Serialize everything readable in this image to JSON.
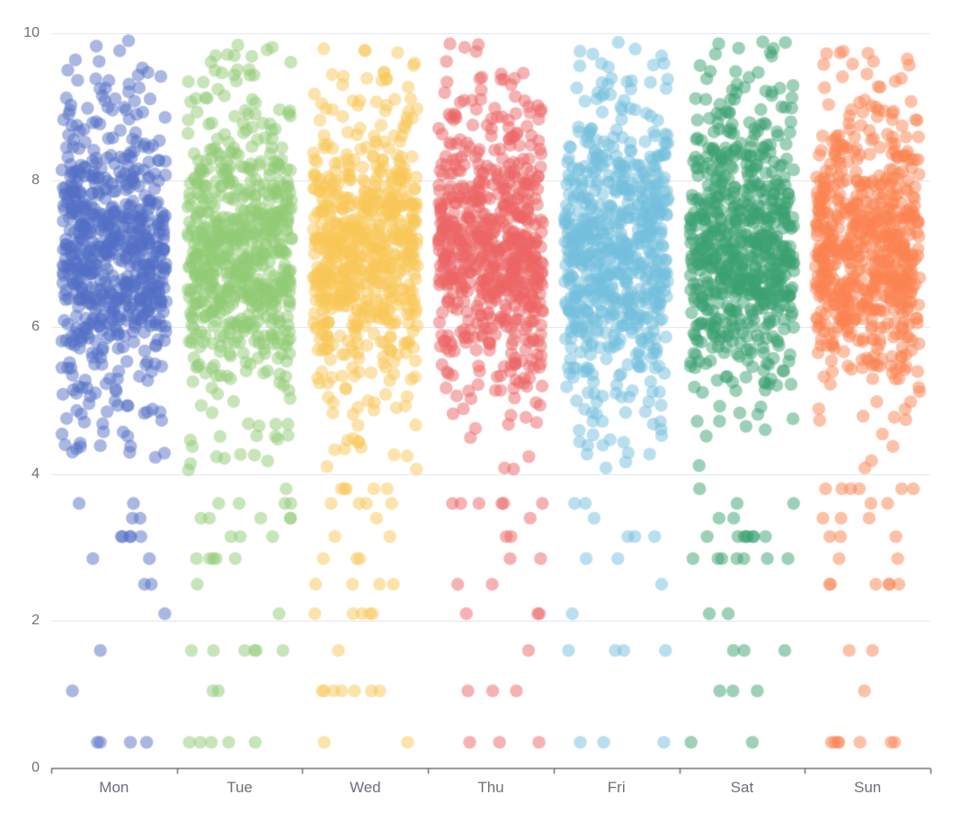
{
  "chart_data": {
    "type": "scatter",
    "variant": "jittered-strip-plot",
    "title": "",
    "xlabel": "",
    "ylabel": "",
    "categories": [
      "Mon",
      "Tue",
      "Wed",
      "Thu",
      "Fri",
      "Sat",
      "Sun"
    ],
    "series": [
      {
        "name": "Mon",
        "color": "#5470c6"
      },
      {
        "name": "Tue",
        "color": "#91cc75"
      },
      {
        "name": "Wed",
        "color": "#fac858"
      },
      {
        "name": "Thu",
        "color": "#ee6666"
      },
      {
        "name": "Fri",
        "color": "#73c0de"
      },
      {
        "name": "Sat",
        "color": "#3ba272"
      },
      {
        "name": "Sun",
        "color": "#fc8452"
      }
    ],
    "y_axis": {
      "min": 0,
      "max": 10,
      "ticks": [
        0,
        2,
        4,
        6,
        8,
        10
      ],
      "grid": true
    },
    "legend": "none",
    "point_style": {
      "radius": 7.2,
      "opacity": 0.5
    },
    "points_per_category": 700,
    "distribution": {
      "note": "approximate per-category y distribution read from the pixels",
      "components": [
        {
          "kind": "normal",
          "weight": 0.62,
          "mean": 7.0,
          "sd": 0.8
        },
        {
          "kind": "normal",
          "weight": 0.26,
          "mean": 7.3,
          "sd": 1.5
        },
        {
          "kind": "uniform",
          "weight": 0.08,
          "min": 4.05,
          "max": 9.9
        }
      ],
      "continuous_clip": [
        4.05,
        9.9
      ],
      "discrete_low_rows": {
        "weight": 0.04,
        "values": [
          0.35,
          1.05,
          1.6,
          2.1,
          2.5,
          2.85,
          3.15,
          3.4,
          3.6,
          3.8
        ]
      }
    },
    "seed": 1337,
    "colors": {
      "grid_line": "#E0E3EE",
      "axis_line": "#6E7079",
      "tick_label": "#6E7079",
      "background": "#ffffff"
    }
  }
}
